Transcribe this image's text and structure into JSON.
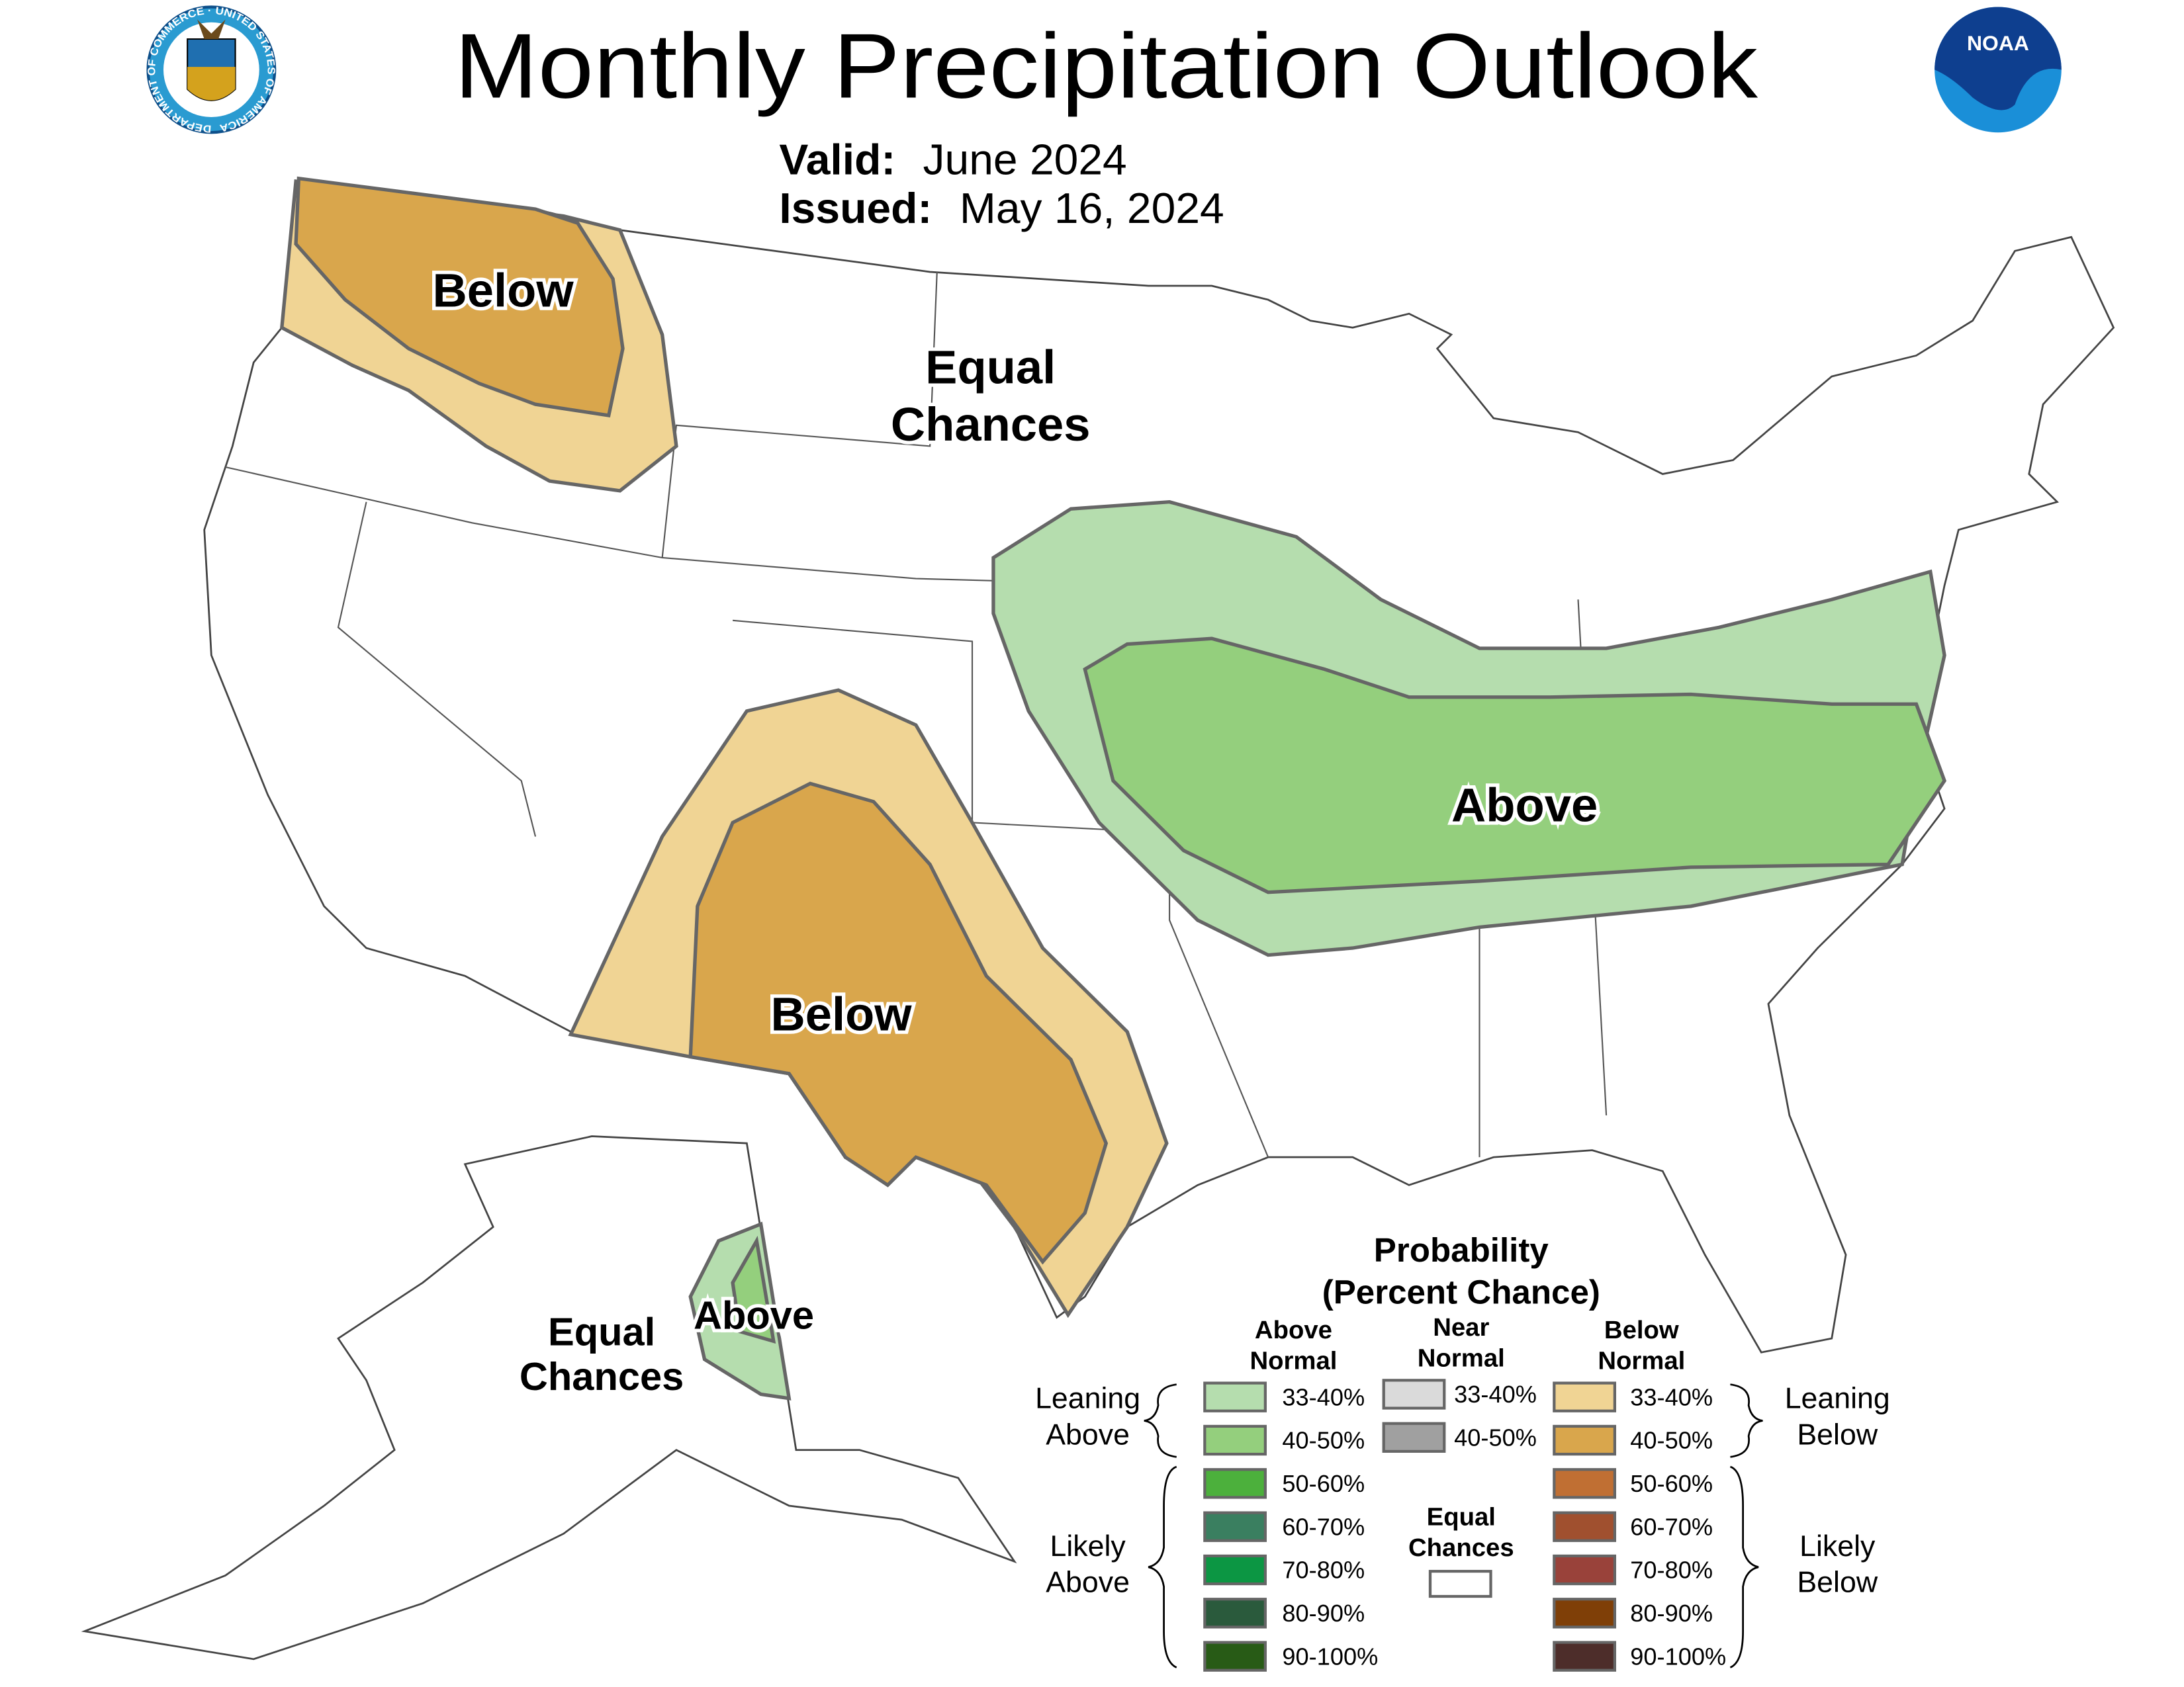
{
  "header": {
    "title": "Monthly Precipitation Outlook",
    "valid_label": "Valid:",
    "valid_value": "June 2024",
    "issued_label": "Issued:",
    "issued_value": "May 16, 2024",
    "left_logo": "Department of Commerce seal",
    "left_logo_text": "DEPARTMENT OF COMMERCE · UNITED STATES OF AMERICA",
    "right_logo": "NOAA logo",
    "right_logo_text": "NOAA"
  },
  "map": {
    "labels": {
      "nw_below": "Below",
      "plains_ec_1": "Equal",
      "plains_ec_2": "Chances",
      "east_above": "Above",
      "sw_below": "Below",
      "ak_ec_1": "Equal",
      "ak_ec_2": "Chances",
      "ak_above": "Above"
    },
    "colors": {
      "above_33_40": "#b5ddae",
      "above_40_50": "#94cf7d",
      "below_33_40": "#f0d494",
      "below_40_50": "#d9a64c"
    }
  },
  "legend": {
    "title_1": "Probability",
    "title_2": "(Percent Chance)",
    "col_above_1": "Above",
    "col_above_2": "Normal",
    "col_near_1": "Near",
    "col_near_2": "Normal",
    "col_below_1": "Below",
    "col_below_2": "Normal",
    "leaning_above_1": "Leaning",
    "leaning_above_2": "Above",
    "likely_above_1": "Likely",
    "likely_above_2": "Above",
    "leaning_below_1": "Leaning",
    "leaning_below_2": "Below",
    "likely_below_1": "Likely",
    "likely_below_2": "Below",
    "equal_1": "Equal",
    "equal_2": "Chances",
    "above": [
      {
        "range": "33-40%",
        "color": "#b5ddae"
      },
      {
        "range": "40-50%",
        "color": "#94cf7d"
      },
      {
        "range": "50-60%",
        "color": "#4cb03c"
      },
      {
        "range": "60-70%",
        "color": "#3a7f60"
      },
      {
        "range": "70-80%",
        "color": "#0c9643"
      },
      {
        "range": "80-90%",
        "color": "#2a5a3c"
      },
      {
        "range": "90-100%",
        "color": "#285b16"
      }
    ],
    "near": [
      {
        "range": "33-40%",
        "color": "#dadada"
      },
      {
        "range": "40-50%",
        "color": "#a0a0a0"
      }
    ],
    "below": [
      {
        "range": "33-40%",
        "color": "#f0d494"
      },
      {
        "range": "40-50%",
        "color": "#d9a64c"
      },
      {
        "range": "50-60%",
        "color": "#c06f33"
      },
      {
        "range": "60-70%",
        "color": "#a0502f"
      },
      {
        "range": "70-80%",
        "color": "#99423a"
      },
      {
        "range": "80-90%",
        "color": "#7f3f07"
      },
      {
        "range": "90-100%",
        "color": "#4d2d2a"
      }
    ]
  }
}
